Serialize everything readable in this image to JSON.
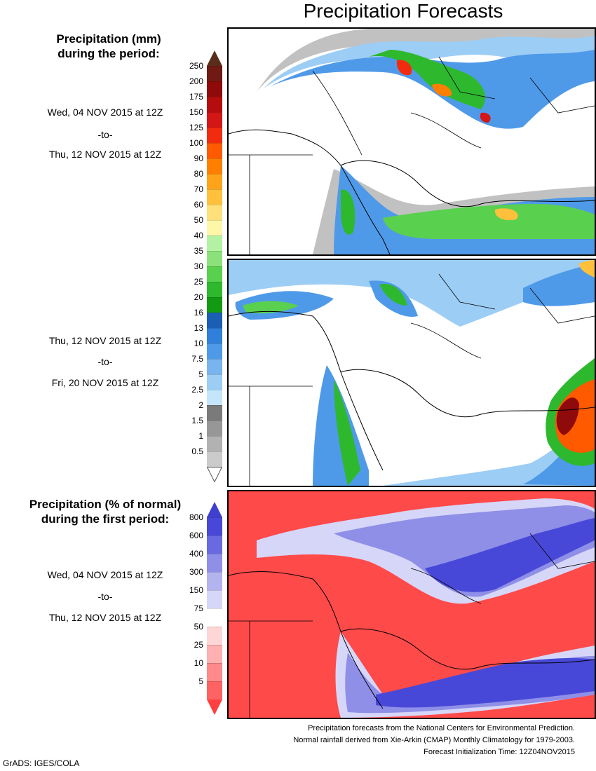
{
  "title": "Precipitation Forecasts",
  "precip_legend": {
    "heading_line1": "Precipitation (mm)",
    "heading_line2": "during the period:",
    "ticks": [
      "250",
      "200",
      "175",
      "150",
      "125",
      "100",
      "90",
      "80",
      "70",
      "60",
      "50",
      "40",
      "35",
      "30",
      "25",
      "20",
      "16",
      "13",
      "10",
      "7.5",
      "5",
      "2.5",
      "2",
      "1.5",
      "1",
      "0.5"
    ],
    "colors": [
      "#701a14",
      "#8f0a0a",
      "#b50d0d",
      "#d41616",
      "#f22b0f",
      "#ff5a00",
      "#ff7f00",
      "#ffa31a",
      "#ffc03c",
      "#ffe07a",
      "#fff7a8",
      "#b4f2a3",
      "#8be27a",
      "#5ad04f",
      "#2eb82e",
      "#139a13",
      "#1a5fb4",
      "#2f7fdb",
      "#4f9ae8",
      "#78b4ee",
      "#9ccdf5",
      "#c3e6fb",
      "#7a7a7a",
      "#979797",
      "#b2b2b2",
      "#cbcbcb"
    ],
    "top_arrow_color": "#5a2d1a"
  },
  "period1": {
    "start": "Wed, 04 NOV 2015 at 12Z",
    "sep": "-to-",
    "end": "Thu, 12 NOV 2015 at 12Z"
  },
  "period2": {
    "start": "Thu, 12 NOV 2015 at 12Z",
    "sep": "-to-",
    "end": "Fri, 20 NOV 2015 at 12Z"
  },
  "percent_legend": {
    "heading_line1": "Precipitation (% of normal)",
    "heading_line2": "during the first period:",
    "ticks": [
      "800",
      "600",
      "400",
      "300",
      "150",
      "75",
      "50",
      "25",
      "10",
      "5"
    ],
    "colors": [
      "#4848d8",
      "#6a6ae0",
      "#8f8fe8",
      "#b3b3f0",
      "#d6d6f8",
      "#ffffff",
      "#ffd6d6",
      "#ffb0b0",
      "#ff8a8a",
      "#ff6262"
    ],
    "top_arrow_color": "#4040d0",
    "bottom_arrow_color": "#ff4040"
  },
  "period3": {
    "start": "Wed, 04 NOV 2015 at 12Z",
    "sep": "-to-",
    "end": "Thu, 12 NOV 2015 at 12Z"
  },
  "footer": {
    "line1": "Precipitation forecasts from the National Centers for Environmental Prediction.",
    "line2": "Normal rainfall derived from Xie-Arkin (CMAP) Monthly Climatology for 1979-2003.",
    "line3": "Forecast Initialization Time: 12Z04NOV2015"
  },
  "credit": "GrADS: IGES/COLA"
}
